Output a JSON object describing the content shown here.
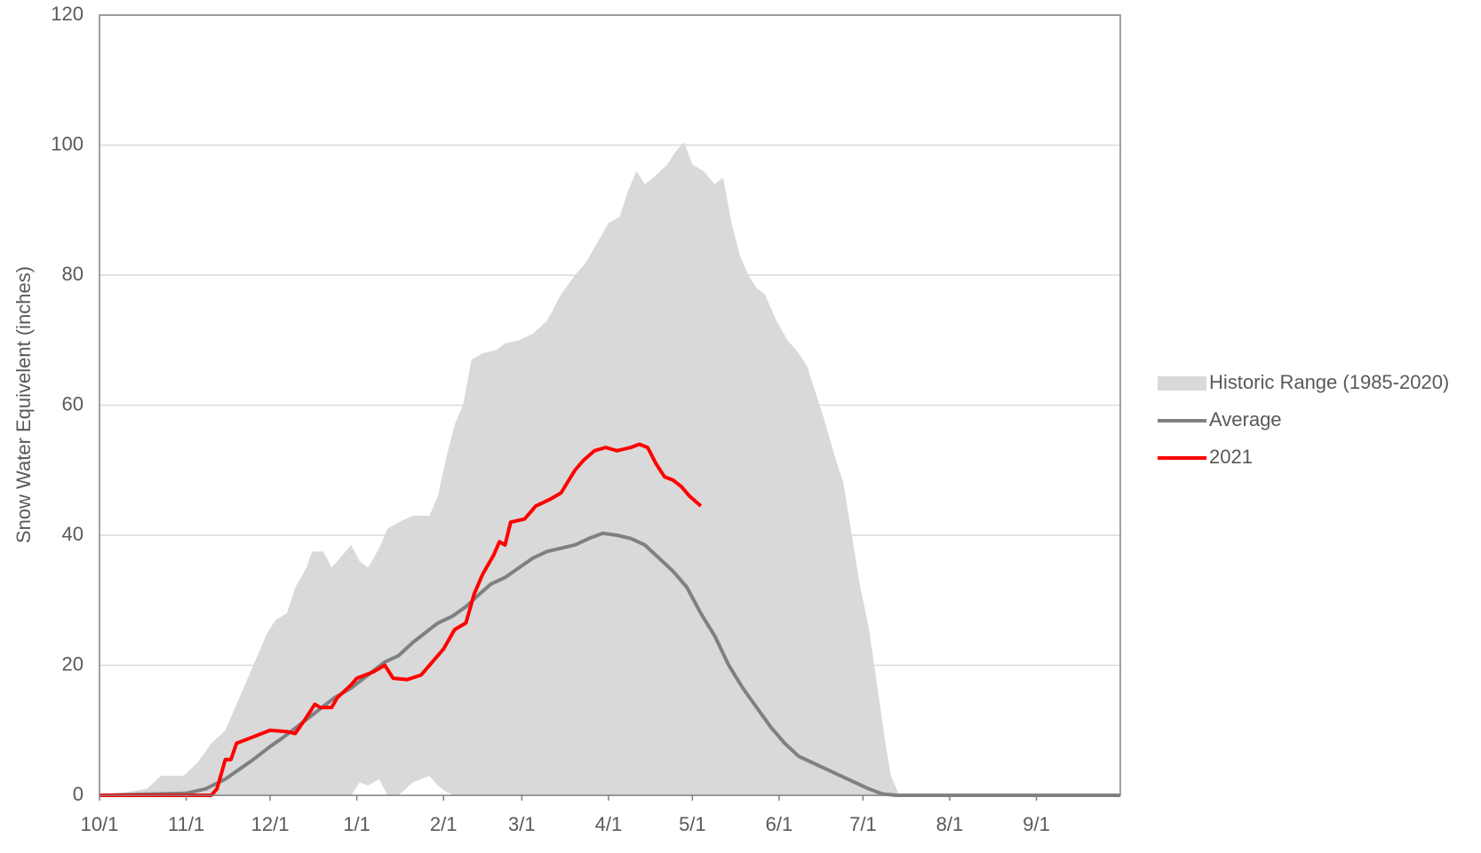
{
  "chart_data": {
    "type": "area_line",
    "ylabel": "Snow Water Equivelent (inches)",
    "xlim": [
      0,
      365
    ],
    "ylim": [
      0,
      120
    ],
    "xticks": [
      {
        "value": 0,
        "label": "10/1"
      },
      {
        "value": 31,
        "label": "11/1"
      },
      {
        "value": 61,
        "label": "12/1"
      },
      {
        "value": 92,
        "label": "1/1"
      },
      {
        "value": 123,
        "label": "2/1"
      },
      {
        "value": 151,
        "label": "3/1"
      },
      {
        "value": 182,
        "label": "4/1"
      },
      {
        "value": 212,
        "label": "5/1"
      },
      {
        "value": 243,
        "label": "6/1"
      },
      {
        "value": 273,
        "label": "7/1"
      },
      {
        "value": 304,
        "label": "8/1"
      },
      {
        "value": 335,
        "label": "9/1"
      }
    ],
    "yticks": [
      0,
      20,
      40,
      60,
      80,
      100,
      120
    ],
    "grid": true,
    "legend": "right",
    "range": {
      "name": "Historic Range (1985-2020)",
      "color": "#d9d9d9",
      "x": [
        0,
        10,
        17,
        22,
        30,
        35,
        40,
        45,
        50,
        55,
        60,
        63,
        67,
        70,
        74,
        76,
        80,
        83,
        87,
        90,
        93,
        96,
        100,
        103,
        107,
        112,
        118,
        121,
        124,
        127,
        130,
        133,
        137,
        142,
        145,
        150,
        155,
        160,
        165,
        170,
        174,
        178,
        182,
        186,
        189,
        192,
        195,
        198,
        203,
        206,
        209,
        212,
        216,
        220,
        223,
        226,
        229,
        232,
        235,
        238,
        242,
        246,
        250,
        253,
        256,
        259,
        263,
        266,
        269,
        272,
        275,
        278,
        281,
        283,
        286,
        365
      ],
      "upper": [
        0,
        0.5,
        1,
        3,
        3,
        5,
        8,
        10,
        15,
        20,
        25,
        27,
        28,
        32,
        35,
        37.5,
        37.5,
        35,
        37,
        38.5,
        36,
        35,
        38,
        41,
        42,
        43,
        43,
        46,
        52,
        57,
        60,
        67,
        68,
        68.5,
        69.5,
        70,
        71,
        73,
        77,
        80,
        82,
        85,
        88,
        89,
        93,
        96,
        94,
        95,
        97,
        99,
        100.5,
        97,
        96,
        94,
        95,
        88,
        83,
        80,
        78,
        77,
        73,
        70,
        68,
        66,
        62,
        58,
        52,
        48,
        40,
        32,
        26,
        17,
        8,
        3,
        0,
        0
      ],
      "lower": [
        0,
        0,
        0,
        0,
        0,
        0,
        0,
        0,
        0,
        0,
        0,
        0,
        0,
        0,
        0,
        0,
        0,
        0,
        0,
        0,
        2,
        1.5,
        2.5,
        0,
        0,
        2,
        3,
        1.5,
        0.5,
        0,
        0,
        0,
        0,
        0,
        0,
        0,
        0,
        0,
        0,
        0,
        0,
        0,
        0,
        0,
        0,
        0,
        0,
        0,
        0,
        0,
        0,
        0,
        0,
        0,
        0,
        0,
        0,
        0,
        0,
        0,
        0,
        0,
        0,
        0,
        0,
        0,
        0,
        0,
        0,
        0,
        0,
        0,
        0,
        0,
        0,
        0
      ]
    },
    "series": [
      {
        "name": "Average",
        "color": "#808080",
        "x": [
          0,
          20,
          31,
          38,
          45,
          50,
          55,
          61,
          66,
          72,
          78,
          84,
          90,
          96,
          102,
          107,
          112,
          118,
          121,
          126,
          131,
          136,
          140,
          145,
          150,
          155,
          160,
          165,
          170,
          175,
          180,
          185,
          190,
          195,
          200,
          205,
          210,
          215,
          220,
          225,
          230,
          235,
          240,
          245,
          250,
          255,
          260,
          265,
          270,
          275,
          280,
          285,
          365
        ],
        "values": [
          0,
          0.2,
          0.3,
          1,
          2.5,
          4,
          5.5,
          7.5,
          9,
          11,
          13,
          15,
          16.5,
          18.5,
          20.5,
          21.5,
          23.5,
          25.5,
          26.5,
          27.5,
          29,
          31,
          32.5,
          33.5,
          35,
          36.5,
          37.5,
          38,
          38.5,
          39.5,
          40.3,
          40,
          39.5,
          38.5,
          36.5,
          34.5,
          32,
          28,
          24.5,
          20,
          16.5,
          13.5,
          10.5,
          8,
          6,
          5,
          4,
          3,
          2,
          1,
          0.2,
          0,
          0
        ]
      },
      {
        "name": "2021",
        "color": "#ff0000",
        "x": [
          0,
          40,
          42,
          45,
          47,
          49,
          52,
          55,
          58,
          61,
          67,
          70,
          74,
          77,
          79,
          83,
          85,
          90,
          92,
          95,
          98,
          100,
          102,
          105,
          110,
          115,
          120,
          123,
          127,
          131,
          134,
          137,
          141,
          143,
          145,
          147,
          152,
          156,
          161,
          165,
          170,
          173,
          177,
          181,
          185,
          190,
          193,
          196,
          199,
          202,
          205,
          208,
          211,
          215
        ],
        "values": [
          0,
          0,
          1,
          5.5,
          5.5,
          8,
          8.5,
          9,
          9.5,
          10,
          9.8,
          9.5,
          12,
          14,
          13.5,
          13.5,
          15,
          17,
          18,
          18.5,
          19,
          19.5,
          20,
          18,
          17.8,
          18.5,
          21,
          22.5,
          25.5,
          26.5,
          31,
          34,
          37,
          39,
          38.5,
          42,
          42.5,
          44.5,
          45.5,
          46.5,
          50,
          51.5,
          53,
          53.5,
          53,
          53.5,
          54,
          53.5,
          51,
          49,
          48.5,
          47.5,
          46,
          44.5
        ]
      }
    ]
  }
}
